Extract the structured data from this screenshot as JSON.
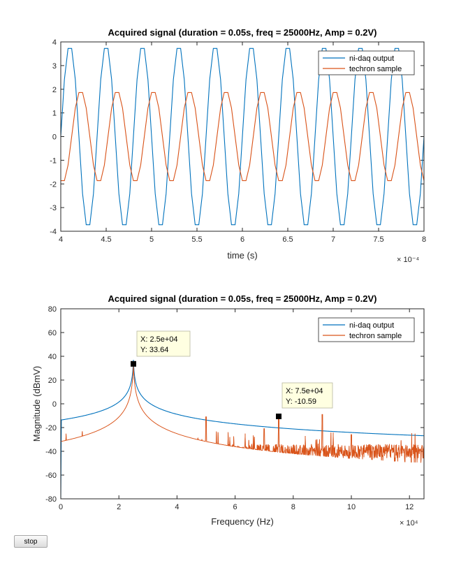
{
  "colors": {
    "series1": "#0072BD",
    "series2": "#D95319",
    "axis": "#262626",
    "tip_bg": "#FFFFE1"
  },
  "controls": {
    "stop_label": "stop"
  },
  "chart_data": [
    {
      "type": "line",
      "title": "Acquired signal (duration = 0.05s, freq = 25000Hz, Amp = 0.2V)",
      "xlabel": "time (s)",
      "ylabel": "",
      "xlim": [
        4,
        8
      ],
      "ylim": [
        -4,
        4
      ],
      "x_exponent": "× 10⁻⁴",
      "xticks": [
        "4",
        "4.5",
        "5",
        "5.5",
        "6",
        "6.5",
        "7",
        "7.5",
        "8"
      ],
      "yticks": [
        "4",
        "3",
        "2",
        "1",
        "0",
        "-1",
        "-2",
        "-3",
        "-4"
      ],
      "legend_position": "top-right",
      "series": [
        {
          "name": "ni-daq output",
          "frequency_hz": 25000,
          "amplitude": 3.8,
          "phase_zero_at": 4.0
        },
        {
          "name": "techron sample",
          "frequency_hz": 25000,
          "amplitude": 1.9,
          "phase_zero_at": 4.12
        }
      ]
    },
    {
      "type": "line",
      "title": "Acquired signal (duration = 0.05s, freq = 25000Hz, Amp = 0.2V)",
      "xlabel": "Frequency (Hz)",
      "ylabel": "Magnitude (dBmV)",
      "xlim": [
        0,
        12.5
      ],
      "ylim": [
        -80,
        80
      ],
      "x_exponent": "× 10⁴",
      "xticks": [
        "0",
        "2",
        "4",
        "6",
        "8",
        "10",
        "12"
      ],
      "yticks": [
        "80",
        "60",
        "40",
        "20",
        "0",
        "-20",
        "-40",
        "-60",
        "-80"
      ],
      "legend_position": "top-right",
      "series": [
        {
          "name": "ni-daq output",
          "peak_x": 2.5,
          "peak_y": 37,
          "floor": -37
        },
        {
          "name": "techron sample",
          "peak_x": 2.5,
          "peak_y": 33.64,
          "floor": -40,
          "spurs": [
            {
              "x": 3.0,
              "y": -14
            },
            {
              "x": 5.0,
              "y": -11
            },
            {
              "x": 7.0,
              "y": -21
            },
            {
              "x": 7.5,
              "y": -10.59
            },
            {
              "x": 9.0,
              "y": -9
            },
            {
              "x": 10.0,
              "y": -26
            }
          ]
        }
      ],
      "datatips": [
        {
          "x": 2.5,
          "y": 33.64,
          "x_text": "X: 2.5e+04",
          "y_text": "Y: 33.64"
        },
        {
          "x": 7.5,
          "y": -10.59,
          "x_text": "X: 7.5e+04",
          "y_text": "Y: -10.59"
        }
      ]
    }
  ]
}
